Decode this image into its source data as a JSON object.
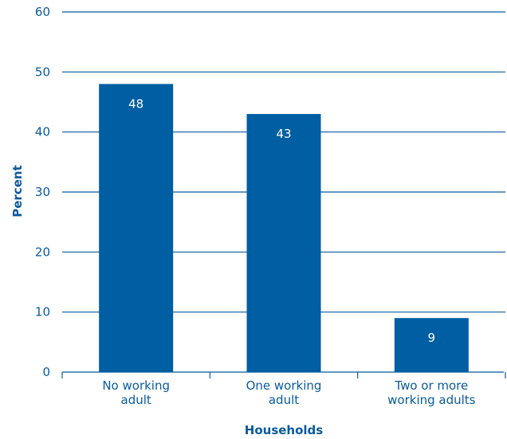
{
  "chart_data": {
    "type": "bar",
    "categories": [
      [
        "No working",
        "adult"
      ],
      [
        "One working",
        "adult"
      ],
      [
        "Two or more",
        "working adults"
      ]
    ],
    "values": [
      48,
      43,
      9
    ],
    "data_labels": [
      "48",
      "43",
      "9"
    ],
    "xlabel": "Households",
    "ylabel": "Percent",
    "ylim": [
      0,
      60
    ],
    "yticks": [
      0,
      10,
      20,
      30,
      40,
      50,
      60
    ],
    "grid": true,
    "colors": {
      "bar": "#005ea2",
      "grid": "#0a5a9c",
      "text": "#0a5a9c",
      "bar_text": "#ffffff"
    }
  }
}
